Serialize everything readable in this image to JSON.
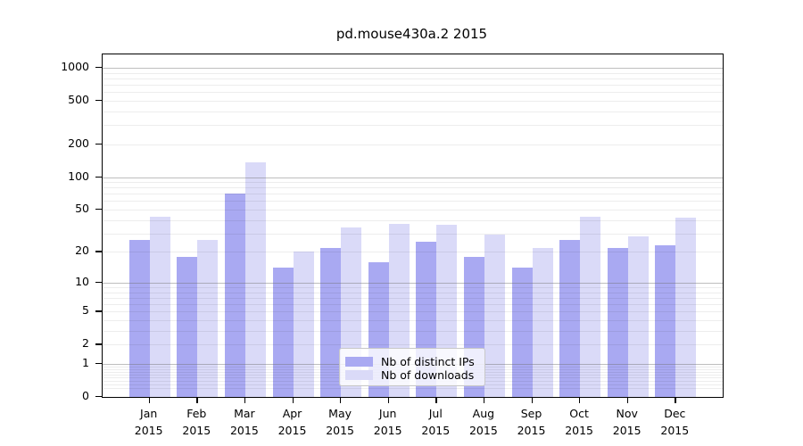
{
  "chart_data": {
    "type": "bar",
    "title": "pd.mouse430a.2 2015",
    "xlabel": "",
    "ylabel": "",
    "scale": "log10(1+x)",
    "ylim": [
      0,
      1323
    ],
    "grid": "on",
    "legend_position": "lower center",
    "y_ticks": [
      0,
      1,
      2,
      5,
      10,
      20,
      50,
      100,
      200,
      500,
      1000
    ],
    "major_gridlines": [
      1,
      10,
      100,
      1000
    ],
    "categories": [
      "Jan 2015",
      "Feb 2015",
      "Mar 2015",
      "Apr 2015",
      "May 2015",
      "Jun 2015",
      "Jul 2015",
      "Aug 2015",
      "Sep 2015",
      "Oct 2015",
      "Nov 2015",
      "Dec 2015"
    ],
    "series": [
      {
        "name": "Nb of distinct IPs",
        "color": "#a9a9f2",
        "values": [
          26,
          18,
          71,
          14,
          22,
          16,
          25,
          18,
          14,
          26,
          22,
          23
        ]
      },
      {
        "name": "Nb of downloads",
        "color": "#dadaf8",
        "values": [
          43,
          26,
          137,
          20,
          34,
          37,
          36,
          29,
          22,
          43,
          28,
          42
        ]
      }
    ],
    "colors": {
      "axis": "#000000",
      "major_grid": "#b4b4b4",
      "minor_grid": "#ededed",
      "background": "#ffffff"
    }
  }
}
